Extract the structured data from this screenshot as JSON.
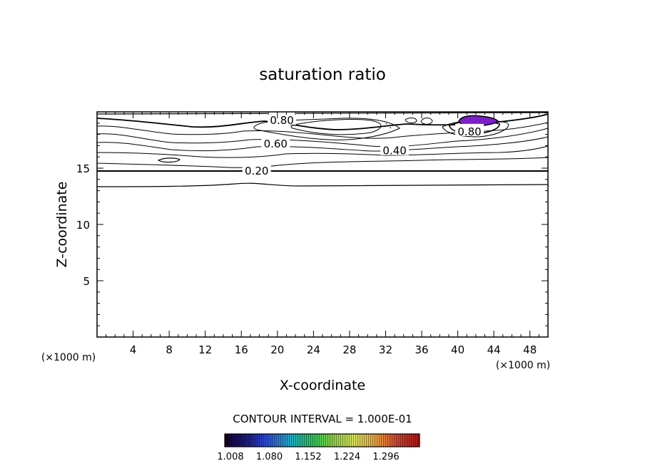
{
  "chart_data": {
    "type": "contour",
    "title": "saturation ratio",
    "xlabel": "X-coordinate",
    "ylabel": "Z-coordinate",
    "x_unit_left": "(×1000 m)",
    "x_unit_right": "(×1000 m)",
    "xlim": [
      0,
      50
    ],
    "ylim": [
      0,
      20
    ],
    "x_ticks": [
      4,
      8,
      12,
      16,
      20,
      24,
      28,
      32,
      36,
      40,
      44,
      48
    ],
    "y_ticks": [
      5,
      10,
      15
    ],
    "contour_interval_text": "CONTOUR INTERVAL = 1.000E-01",
    "contour_labels": [
      {
        "text": "0.80",
        "x": 20.5,
        "y": 19.3
      },
      {
        "text": "0.80",
        "x": 41.3,
        "y": 18.3
      },
      {
        "text": "0.60",
        "x": 19.8,
        "y": 17.2
      },
      {
        "text": "0.40",
        "x": 33.0,
        "y": 16.6
      },
      {
        "text": "0.20",
        "x": 17.7,
        "y": 14.8
      }
    ],
    "shaded_region": {
      "x": [
        40.5,
        44.5
      ],
      "y": [
        18.6,
        19.5
      ],
      "color": "#7b1fc8"
    },
    "colorbar": {
      "labels": [
        "1.008",
        "1.080",
        "1.152",
        "1.224",
        "1.296"
      ],
      "colors": [
        "#150020",
        "#1a1a8a",
        "#2a4fd6",
        "#20a8c8",
        "#2cc060",
        "#8ed040",
        "#d8e060",
        "#e8a040",
        "#d04030",
        "#a01818"
      ]
    },
    "grid": false
  }
}
